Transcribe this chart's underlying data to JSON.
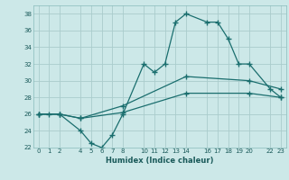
{
  "title": "",
  "xlabel": "Humidex (Indice chaleur)",
  "ylabel": "",
  "bg_color": "#cce8e8",
  "grid_color": "#aacccc",
  "line_color": "#1a6e6e",
  "xlim": [
    -0.5,
    23.5
  ],
  "ylim": [
    22,
    39
  ],
  "yticks": [
    22,
    24,
    26,
    28,
    30,
    32,
    34,
    36,
    38
  ],
  "xticks": [
    0,
    1,
    2,
    4,
    5,
    6,
    7,
    8,
    10,
    11,
    12,
    13,
    14,
    16,
    17,
    18,
    19,
    20,
    22,
    23
  ],
  "line1_x": [
    0,
    1,
    2,
    4,
    5,
    6,
    7,
    8,
    10,
    11,
    12,
    13,
    14,
    16,
    17,
    18,
    19,
    20,
    22,
    23
  ],
  "line1_y": [
    26,
    26,
    26,
    24,
    22.5,
    22,
    23.5,
    26,
    32,
    31,
    32,
    37,
    38,
    37,
    37,
    35,
    32,
    32,
    29,
    28
  ],
  "line2_x": [
    0,
    2,
    4,
    8,
    14,
    20,
    23
  ],
  "line2_y": [
    26,
    26,
    25.5,
    27,
    30.5,
    30,
    29
  ],
  "line3_x": [
    0,
    2,
    4,
    8,
    14,
    20,
    23
  ],
  "line3_y": [
    26,
    26,
    25.5,
    26.2,
    28.5,
    28.5,
    28
  ]
}
